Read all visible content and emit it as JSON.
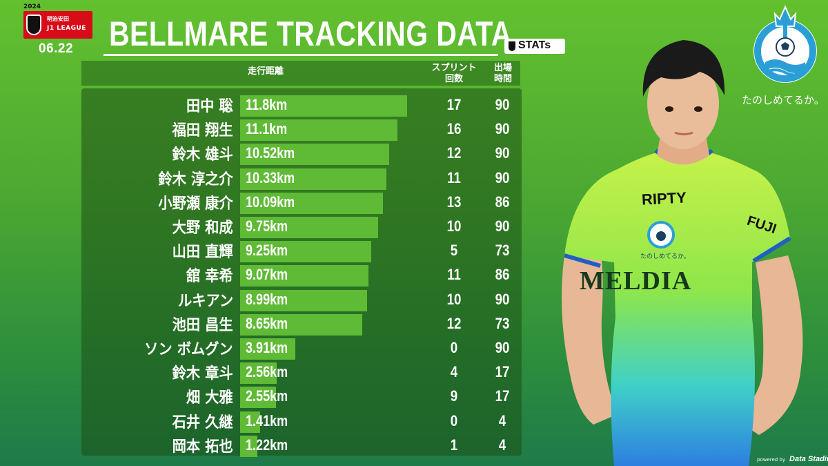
{
  "badge": {
    "year": "2024",
    "sponsor": "明治安田",
    "league": "J1 LEAGUE"
  },
  "date": "06.22",
  "title": "BELLMARE TRACKING DATA",
  "provider_logo": "STATs",
  "slogan": "たのしめてるか。",
  "jersey": {
    "sponsor1": "RIPTY",
    "sponsor2": "MELDIA",
    "sponsor3": "FUJI",
    "slogan_small": "たのしめてるか。"
  },
  "powered_by": {
    "prefix": "powered by",
    "name": "Data Stadium"
  },
  "colors": {
    "background_top": "#63c12f",
    "background_bottom": "#1f7a4a",
    "bar": "#5fba35",
    "text": "#ffffff",
    "badge_red": "#d70c18"
  },
  "table": {
    "headers": {
      "distance": "走行距離",
      "sprints_line1": "スプリント",
      "sprints_line2": "回数",
      "minutes_line1": "出場",
      "minutes_line2": "時間"
    }
  },
  "chart_data": {
    "type": "bar",
    "orientation": "horizontal",
    "unit": "km",
    "xlim": [
      0,
      11.8
    ],
    "rows": [
      {
        "name": "田中 聡",
        "distance": 11.8,
        "distance_label": "11.8km",
        "sprints": 17,
        "minutes": 90
      },
      {
        "name": "福田 翔生",
        "distance": 11.1,
        "distance_label": "11.1km",
        "sprints": 16,
        "minutes": 90
      },
      {
        "name": "鈴木 雄斗",
        "distance": 10.52,
        "distance_label": "10.52km",
        "sprints": 12,
        "minutes": 90
      },
      {
        "name": "鈴木 淳之介",
        "distance": 10.33,
        "distance_label": "10.33km",
        "sprints": 11,
        "minutes": 90
      },
      {
        "name": "小野瀬 康介",
        "distance": 10.09,
        "distance_label": "10.09km",
        "sprints": 13,
        "minutes": 86
      },
      {
        "name": "大野 和成",
        "distance": 9.75,
        "distance_label": "9.75km",
        "sprints": 10,
        "minutes": 90
      },
      {
        "name": "山田 直輝",
        "distance": 9.25,
        "distance_label": "9.25km",
        "sprints": 5,
        "minutes": 73
      },
      {
        "name": "舘 幸希",
        "distance": 9.07,
        "distance_label": "9.07km",
        "sprints": 11,
        "minutes": 86
      },
      {
        "name": "ルキアン",
        "distance": 8.99,
        "distance_label": "8.99km",
        "sprints": 10,
        "minutes": 90
      },
      {
        "name": "池田 昌生",
        "distance": 8.65,
        "distance_label": "8.65km",
        "sprints": 12,
        "minutes": 73
      },
      {
        "name": "ソン ボムグン",
        "distance": 3.91,
        "distance_label": "3.91km",
        "sprints": 0,
        "minutes": 90
      },
      {
        "name": "鈴木 章斗",
        "distance": 2.56,
        "distance_label": "2.56km",
        "sprints": 4,
        "minutes": 17
      },
      {
        "name": "畑 大雅",
        "distance": 2.55,
        "distance_label": "2.55km",
        "sprints": 9,
        "minutes": 17
      },
      {
        "name": "石井 久継",
        "distance": 1.41,
        "distance_label": "1.41km",
        "sprints": 0,
        "minutes": 4
      },
      {
        "name": "岡本 拓也",
        "distance": 1.22,
        "distance_label": "1.22km",
        "sprints": 1,
        "minutes": 4
      }
    ]
  }
}
